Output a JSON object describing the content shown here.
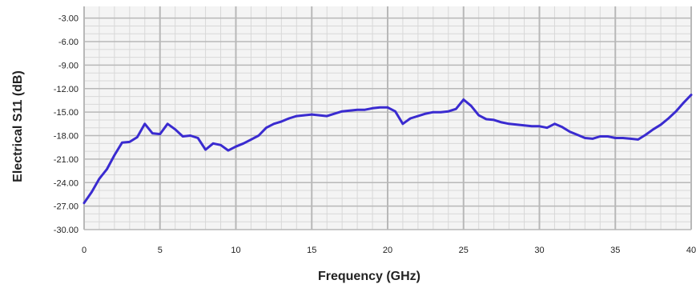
{
  "chart_data": {
    "type": "line",
    "title": "",
    "xlabel": "Frequency  (GHz)",
    "ylabel": "Electrical S11 (dB)",
    "xlim": [
      0,
      40
    ],
    "ylim": [
      -30,
      -1.5
    ],
    "x_ticks": [
      0,
      5,
      10,
      15,
      20,
      25,
      30,
      35,
      40
    ],
    "x_tick_labels": [
      "0",
      "5",
      "10",
      "15",
      "20",
      "25",
      "30",
      "35",
      "40"
    ],
    "y_ticks": [
      -3,
      -6,
      -9,
      -12,
      -15,
      -18,
      -21,
      -24,
      -27,
      -30
    ],
    "y_tick_labels": [
      "-3.00",
      "-6.00",
      "-9.00",
      "-12.00",
      "-15.00",
      "-18.00",
      "-21.00",
      "-24.00",
      "-27.00",
      "-30.00"
    ],
    "grid": true,
    "legend": "none",
    "colors": {
      "line": "#3a2bd0",
      "grid_major": "#b8b8b8",
      "grid_minor": "#d8d8d8",
      "plot_bg": "#f4f4f4"
    },
    "series": [
      {
        "x": [
          0,
          0.5,
          1,
          1.5,
          2,
          2.5,
          3,
          3.5,
          4,
          4.5,
          5,
          5.5,
          6,
          6.5,
          7,
          7.5,
          8,
          8.5,
          9,
          9.5,
          10,
          10.5,
          11,
          11.5,
          12,
          12.5,
          13,
          13.5,
          14,
          14.5,
          15,
          15.5,
          16,
          16.5,
          17,
          17.5,
          18,
          18.5,
          19,
          19.5,
          20,
          20.5,
          21,
          21.5,
          22,
          22.5,
          23,
          23.5,
          24,
          24.5,
          25,
          25.5,
          26,
          26.5,
          27,
          27.5,
          28,
          28.5,
          29,
          29.5,
          30,
          30.5,
          31,
          31.5,
          32,
          32.5,
          33,
          33.5,
          34,
          34.5,
          35,
          35.5,
          36,
          36.5,
          37,
          37.5,
          38,
          38.5,
          39,
          39.5,
          40
        ],
        "values": [
          -26.6,
          -25.2,
          -23.5,
          -22.3,
          -20.5,
          -18.9,
          -18.8,
          -18.2,
          -16.5,
          -17.7,
          -17.8,
          -16.5,
          -17.2,
          -18.1,
          -18.0,
          -18.3,
          -19.8,
          -19.0,
          -19.2,
          -19.9,
          -19.4,
          -19.0,
          -18.5,
          -18.0,
          -17.0,
          -16.5,
          -16.2,
          -15.8,
          -15.5,
          -15.4,
          -15.3,
          -15.4,
          -15.5,
          -15.2,
          -14.9,
          -14.8,
          -14.7,
          -14.7,
          -14.5,
          -14.4,
          -14.4,
          -14.9,
          -16.5,
          -15.8,
          -15.5,
          -15.2,
          -15.0,
          -15.0,
          -14.9,
          -14.6,
          -13.4,
          -14.2,
          -15.4,
          -15.9,
          -16.0,
          -16.3,
          -16.5,
          -16.6,
          -16.7,
          -16.8,
          -16.8,
          -17.0,
          -16.5,
          -16.9,
          -17.5,
          -17.9,
          -18.3,
          -18.4,
          -18.1,
          -18.1,
          -18.3,
          -18.3,
          -18.4,
          -18.5,
          -17.9,
          -17.2,
          -16.6,
          -15.8,
          -14.9,
          -13.8,
          -12.8
        ]
      }
    ]
  }
}
